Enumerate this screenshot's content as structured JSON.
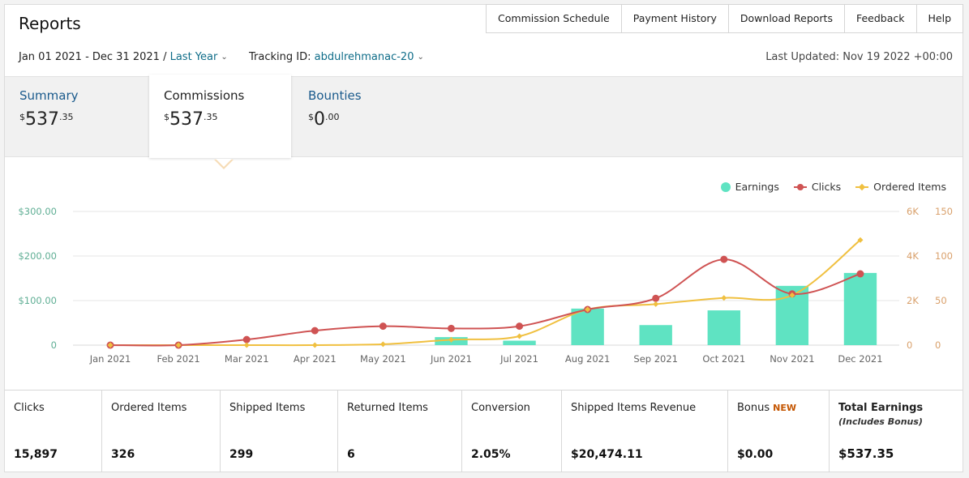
{
  "header": {
    "title": "Reports",
    "nav": [
      "Commission Schedule",
      "Payment History",
      "Download Reports",
      "Feedback",
      "Help"
    ]
  },
  "filters": {
    "date_range": "Jan 01 2021 - Dec 31 2021 /",
    "period": "Last Year",
    "tracking_label": "Tracking ID:",
    "tracking_id": "abdulrehmanac-20",
    "last_updated": "Last Updated: Nov 19 2022 +00:00"
  },
  "tabs": [
    {
      "label": "Summary",
      "currency": "$",
      "whole": "537",
      "cents": "35"
    },
    {
      "label": "Commissions",
      "currency": "$",
      "whole": "537",
      "cents": "35"
    },
    {
      "label": "Bounties",
      "currency": "$",
      "whole": "0",
      "cents": "00"
    }
  ],
  "colors": {
    "earnings": "#5fe3c2",
    "clicks": "#cf5353",
    "ordered_items": "#f0c040",
    "left_axis": "#5fae94",
    "right_axis": "#d9a06b",
    "accent_link": "#0f6d89",
    "new_badge": "#c45500"
  },
  "chart_data": {
    "type": "bar",
    "categories": [
      "Jan 2021",
      "Feb 2021",
      "Mar 2021",
      "Apr 2021",
      "May 2021",
      "Jun 2021",
      "Jul 2021",
      "Aug 2021",
      "Sep 2021",
      "Oct 2021",
      "Nov 2021",
      "Dec 2021"
    ],
    "legend": [
      "Earnings",
      "Clicks",
      "Ordered Items"
    ],
    "legend_position": "top-right",
    "grid": true,
    "left_axis": {
      "ticks": [
        "$300.00",
        "$200.00",
        "$100.00",
        "0"
      ],
      "ylim": [
        0,
        300
      ]
    },
    "right_axis_clicks": {
      "ticks": [
        "6K",
        "4K",
        "2K",
        "0"
      ],
      "ylim": [
        0,
        6000
      ]
    },
    "right_axis_items": {
      "ticks": [
        "150",
        "100",
        "50",
        "0"
      ],
      "ylim": [
        0,
        150
      ]
    },
    "series": [
      {
        "name": "Earnings",
        "type": "bar",
        "axis": "left",
        "values": [
          0,
          0,
          0,
          0,
          0,
          18,
          10,
          82,
          45,
          78,
          133,
          162
        ]
      },
      {
        "name": "Clicks",
        "type": "line",
        "axis": "right_clicks",
        "values": [
          0,
          0,
          250,
          650,
          850,
          750,
          850,
          1600,
          2100,
          3850,
          2300,
          3200
        ]
      },
      {
        "name": "Ordered Items",
        "type": "line",
        "axis": "right_items",
        "values": [
          0,
          0,
          0,
          0,
          1,
          6,
          10,
          40,
          46,
          53,
          56,
          118
        ]
      }
    ]
  },
  "stats": [
    {
      "label": "Clicks",
      "value": "15,897"
    },
    {
      "label": "Ordered Items",
      "value": "326"
    },
    {
      "label": "Shipped Items",
      "value": "299"
    },
    {
      "label": "Returned Items",
      "value": "6"
    },
    {
      "label": "Conversion",
      "value": "2.05%"
    },
    {
      "label": "Shipped Items Revenue",
      "value": "$20,474.11"
    },
    {
      "label": "Bonus",
      "badge": "NEW",
      "value": "$0.00"
    },
    {
      "label": "Total Earnings",
      "sub": "(Includes Bonus)",
      "value": "$537.35"
    }
  ]
}
